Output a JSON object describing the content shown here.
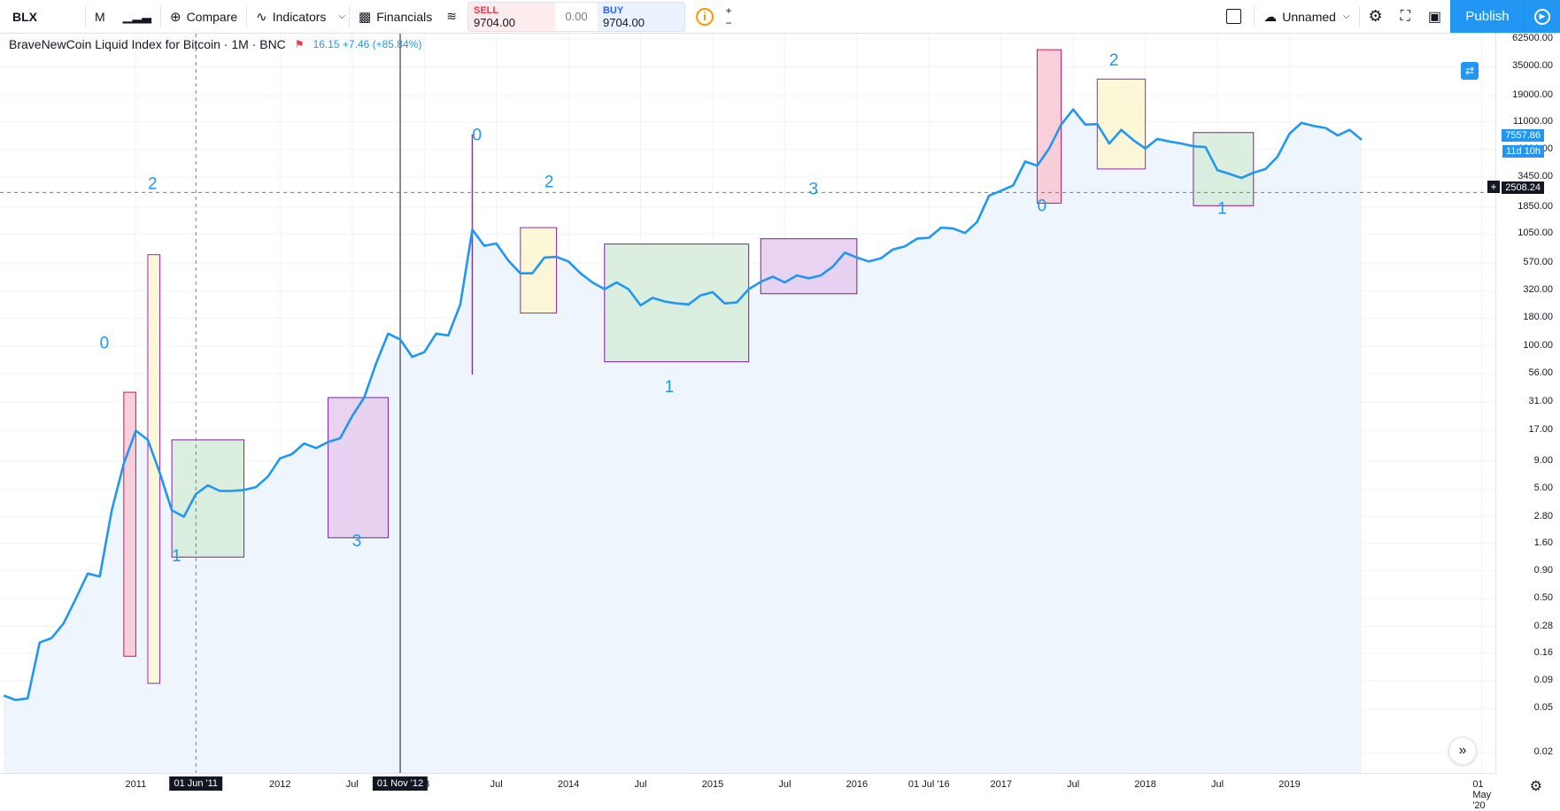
{
  "toolbar": {
    "symbol": "BLX",
    "interval": "M",
    "compare_label": "Compare",
    "indicators_label": "Indicators",
    "financials_label": "Financials",
    "sell_label": "SELL",
    "sell_value": "9704.00",
    "spread": "0.00",
    "buy_label": "BUY",
    "buy_value": "9704.00",
    "layout_name": "Unnamed",
    "publish_label": "Publish"
  },
  "legend": {
    "title": "BraveNewCoin Liquid Index for Bitcoin · 1M · BNC",
    "values": "16.15 +7.46 (+85.84%)"
  },
  "price_labels": {
    "last": "7557.86",
    "countdown": "11d 10h",
    "crosshair": "2508.24"
  },
  "chart_data": {
    "type": "line",
    "title": "BraveNewCoin Liquid Index for Bitcoin · 1M · BNC",
    "log_scale": true,
    "ylim": [
      0.013,
      70000
    ],
    "xlim": [
      "2010-02",
      "2020-06"
    ],
    "y_ticks": [
      "62500.00",
      "35000.00",
      "19000.00",
      "11000.00",
      "6200.00",
      "3450.00",
      "1850.00",
      "1050.00",
      "570.00",
      "320.00",
      "180.00",
      "100.00",
      "56.00",
      "31.00",
      "17.00",
      "9.00",
      "5.00",
      "2.80",
      "1.60",
      "0.90",
      "0.50",
      "0.28",
      "0.16",
      "0.09",
      "0.05",
      "0.02"
    ],
    "x_ticks": [
      {
        "label": "2011",
        "date": "2011-01"
      },
      {
        "label": "2012",
        "date": "2012-01"
      },
      {
        "label": "Jul",
        "date": "2012-07"
      },
      {
        "label": "13",
        "date": "2013-01"
      },
      {
        "label": "Jul",
        "date": "2013-07"
      },
      {
        "label": "2014",
        "date": "2014-01"
      },
      {
        "label": "Jul",
        "date": "2014-07"
      },
      {
        "label": "2015",
        "date": "2015-01"
      },
      {
        "label": "Jul",
        "date": "2015-07"
      },
      {
        "label": "2016",
        "date": "2016-01"
      },
      {
        "label": "01 Jul '16",
        "date": "2016-07"
      },
      {
        "label": "2017",
        "date": "2017-01"
      },
      {
        "label": "Jul",
        "date": "2017-07"
      },
      {
        "label": "2018",
        "date": "2018-01"
      },
      {
        "label": "Jul",
        "date": "2018-07"
      },
      {
        "label": "2019",
        "date": "2019-01"
      },
      {
        "label": "01 May '20",
        "date": "2020-05"
      }
    ],
    "x_badges": [
      {
        "label": "01 Jun '11",
        "date": "2011-06"
      },
      {
        "label": "01 Nov '12",
        "date": "2012-11"
      }
    ],
    "series": [
      {
        "color": "#2196f3",
        "points": [
          [
            "2010-02",
            0.066
          ],
          [
            "2010-03",
            0.06
          ],
          [
            "2010-04",
            0.062
          ],
          [
            "2010-05",
            0.2
          ],
          [
            "2010-06",
            0.22
          ],
          [
            "2010-07",
            0.3
          ],
          [
            "2010-08",
            0.5
          ],
          [
            "2010-09",
            0.85
          ],
          [
            "2010-10",
            0.8
          ],
          [
            "2010-11",
            3.2
          ],
          [
            "2010-12",
            8.5
          ],
          [
            "2011-01",
            17
          ],
          [
            "2011-02",
            14
          ],
          [
            "2011-03",
            7
          ],
          [
            "2011-04",
            3.2
          ],
          [
            "2011-05",
            2.8
          ],
          [
            "2011-06",
            4.5
          ],
          [
            "2011-07",
            5.4
          ],
          [
            "2011-08",
            4.8
          ],
          [
            "2011-09",
            4.8
          ],
          [
            "2011-10",
            4.9
          ],
          [
            "2011-11",
            5.2
          ],
          [
            "2011-12",
            6.5
          ],
          [
            "2012-01",
            9.5
          ],
          [
            "2012-02",
            10.4
          ],
          [
            "2012-03",
            13
          ],
          [
            "2012-04",
            11.8
          ],
          [
            "2012-05",
            13.4
          ],
          [
            "2012-06",
            14.5
          ],
          [
            "2012-07",
            23
          ],
          [
            "2012-08",
            34
          ],
          [
            "2012-09",
            70
          ],
          [
            "2012-10",
            130
          ],
          [
            "2012-11",
            115
          ],
          [
            "2012-12",
            80
          ],
          [
            "2013-01",
            88
          ],
          [
            "2013-02",
            130
          ],
          [
            "2013-03",
            125
          ],
          [
            "2013-04",
            240
          ],
          [
            "2013-05",
            1150
          ],
          [
            "2013-06",
            820
          ],
          [
            "2013-07",
            860
          ],
          [
            "2013-08",
            600
          ],
          [
            "2013-09",
            460
          ],
          [
            "2013-10",
            460
          ],
          [
            "2013-11",
            640
          ],
          [
            "2013-12",
            650
          ],
          [
            "2014-01",
            590
          ],
          [
            "2014-02",
            460
          ],
          [
            "2014-03",
            380
          ],
          [
            "2014-04",
            330
          ],
          [
            "2014-05",
            380
          ],
          [
            "2014-06",
            330
          ],
          [
            "2014-07",
            235
          ],
          [
            "2014-08",
            275
          ],
          [
            "2014-09",
            255
          ],
          [
            "2014-10",
            245
          ],
          [
            "2014-11",
            240
          ],
          [
            "2014-12",
            290
          ],
          [
            "2015-01",
            310
          ],
          [
            "2015-02",
            245
          ],
          [
            "2015-03",
            250
          ],
          [
            "2015-04",
            330
          ],
          [
            "2015-05",
            385
          ],
          [
            "2015-06",
            430
          ],
          [
            "2015-07",
            380
          ],
          [
            "2015-08",
            440
          ],
          [
            "2015-09",
            415
          ],
          [
            "2015-10",
            440
          ],
          [
            "2015-11",
            530
          ],
          [
            "2015-12",
            710
          ],
          [
            "2016-01",
            640
          ],
          [
            "2016-02",
            590
          ],
          [
            "2016-03",
            630
          ],
          [
            "2016-04",
            760
          ],
          [
            "2016-05",
            810
          ],
          [
            "2016-06",
            950
          ],
          [
            "2016-07",
            970
          ],
          [
            "2016-08",
            1200
          ],
          [
            "2016-09",
            1180
          ],
          [
            "2016-10",
            1070
          ],
          [
            "2016-11",
            1350
          ],
          [
            "2016-12",
            2350
          ],
          [
            "2017-01",
            2600
          ],
          [
            "2017-02",
            2900
          ],
          [
            "2017-03",
            4800
          ],
          [
            "2017-04",
            4400
          ],
          [
            "2017-05",
            6300
          ],
          [
            "2017-06",
            10400
          ],
          [
            "2017-07",
            14300
          ],
          [
            "2017-08",
            10400
          ],
          [
            "2017-09",
            10500
          ],
          [
            "2017-10",
            7000
          ],
          [
            "2017-11",
            9300
          ],
          [
            "2017-12",
            7500
          ],
          [
            "2018-01",
            6300
          ],
          [
            "2018-02",
            7700
          ],
          [
            "2018-03",
            7300
          ],
          [
            "2018-04",
            7000
          ],
          [
            "2018-05",
            6600
          ],
          [
            "2018-06",
            6500
          ],
          [
            "2018-07",
            4000
          ],
          [
            "2018-08",
            3700
          ],
          [
            "2018-09",
            3400
          ],
          [
            "2018-10",
            3800
          ],
          [
            "2018-11",
            4100
          ],
          [
            "2018-12",
            5300
          ],
          [
            "2019-01",
            8600
          ],
          [
            "2019-02",
            10800
          ],
          [
            "2019-03",
            10100
          ],
          [
            "2019-04",
            9700
          ],
          [
            "2019-05",
            8300
          ],
          [
            "2019-06",
            9300
          ],
          [
            "2019-07",
            7557
          ]
        ]
      }
    ],
    "boxes": [
      {
        "x0": "2010-12",
        "x1": "2011-01",
        "y0": 0.15,
        "y1": 38,
        "fill": "#f8c8d4",
        "stroke": "#c2185b"
      },
      {
        "x0": "2011-02",
        "x1": "2011-03",
        "y0": 0.085,
        "y1": 680,
        "fill": "#fcf6d0",
        "stroke": "#9c27b0"
      },
      {
        "x0": "2011-04",
        "x1": "2011-10",
        "y0": 1.2,
        "y1": 14,
        "fill": "#d6ecd9",
        "stroke": "#7b1fa2"
      },
      {
        "x0": "2012-05",
        "x1": "2012-10",
        "y0": 1.8,
        "y1": 34,
        "fill": "#e5cbef",
        "stroke": "#7b1fa2"
      },
      {
        "x0": "2013-09",
        "x1": "2013-12",
        "y0": 200,
        "y1": 1200,
        "fill": "#fcf6d0",
        "stroke": "#9c27b0"
      },
      {
        "x0": "2014-04",
        "x1": "2015-04",
        "y0": 72,
        "y1": 850,
        "fill": "#d6ecd9",
        "stroke": "#7b1fa2"
      },
      {
        "x0": "2015-05",
        "x1": "2016-01",
        "y0": 300,
        "y1": 950,
        "fill": "#e5cbef",
        "stroke": "#7b1fa2"
      },
      {
        "x0": "2017-04",
        "x1": "2017-06",
        "y0": 2000,
        "y1": 50000,
        "fill": "#f8c8d4",
        "stroke": "#c2185b"
      },
      {
        "x0": "2017-09",
        "x1": "2018-01",
        "y0": 4100,
        "y1": 27000,
        "fill": "#fcf6d0",
        "stroke": "#9c27b0"
      },
      {
        "x0": "2018-05",
        "x1": "2018-10",
        "y0": 1900,
        "y1": 8800,
        "fill": "#d6ecd9",
        "stroke": "#7b1fa2"
      }
    ],
    "annotations": [
      {
        "text": "0",
        "date": "2010-10",
        "y": 95
      },
      {
        "text": "2",
        "date": "2011-02",
        "y": 2700
      },
      {
        "text": "1",
        "date": "2011-04",
        "y": 1.1
      },
      {
        "text": "3",
        "date": "2012-07",
        "y": 1.5
      },
      {
        "text": "0",
        "date": "2013-05",
        "y": 7500
      },
      {
        "text": "2",
        "date": "2013-11",
        "y": 2800
      },
      {
        "text": "1",
        "date": "2014-09",
        "y": 38
      },
      {
        "text": "3",
        "date": "2015-09",
        "y": 2400
      },
      {
        "text": "0",
        "date": "2017-04",
        "y": 1700
      },
      {
        "text": "2",
        "date": "2017-10",
        "y": 36000
      },
      {
        "text": "1",
        "date": "2018-07",
        "y": 1600
      }
    ]
  }
}
